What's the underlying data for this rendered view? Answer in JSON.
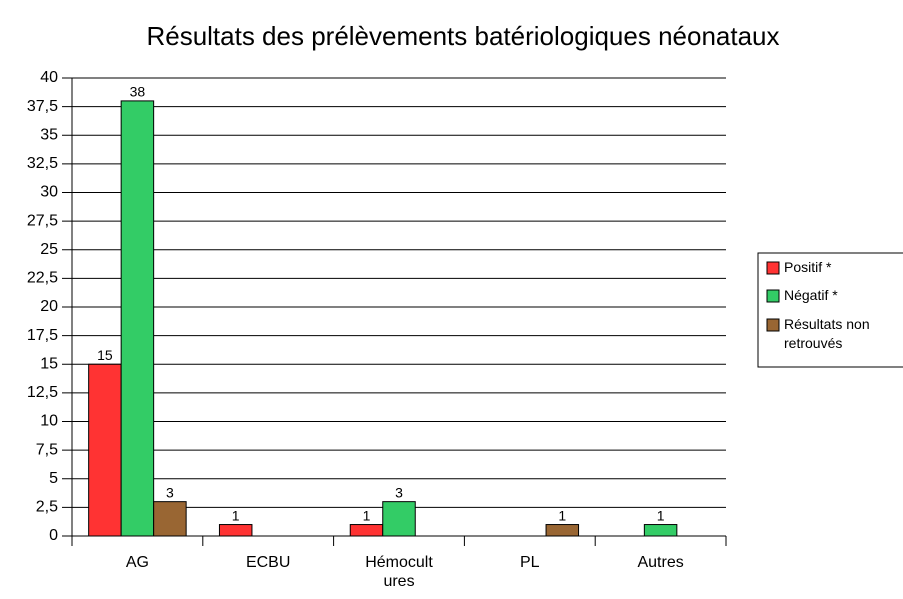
{
  "chart_data": {
    "type": "bar",
    "title": "Résultats des prélèvements batériologiques néonataux",
    "categories": [
      "AG",
      "ECBU",
      "Hémocultures",
      "PL",
      "Autres"
    ],
    "series": [
      {
        "name": "Positif *",
        "color": "#ff3333",
        "values": [
          15,
          1,
          1,
          null,
          null
        ]
      },
      {
        "name": "Négatif *",
        "color": "#33cc66",
        "values": [
          38,
          null,
          3,
          null,
          1
        ]
      },
      {
        "name": "Résultats non retrouvés",
        "color": "#996633",
        "values": [
          3,
          null,
          null,
          1,
          null
        ]
      }
    ],
    "ylim": [
      0,
      40
    ],
    "yticks": [
      0,
      {
        "value": 2.5,
        "label": "2,5"
      },
      5,
      {
        "value": 7.5,
        "label": "7,5"
      },
      10,
      {
        "value": 12.5,
        "label": "12,5"
      },
      15,
      {
        "value": 17.5,
        "label": "17,5"
      },
      20,
      {
        "value": 22.5,
        "label": "22,5"
      },
      25,
      {
        "value": 27.5,
        "label": "27,5"
      },
      30,
      {
        "value": 32.5,
        "label": "32,5"
      },
      35,
      {
        "value": 37.5,
        "label": "37,5"
      },
      40
    ],
    "grid": true,
    "legend": "right"
  }
}
